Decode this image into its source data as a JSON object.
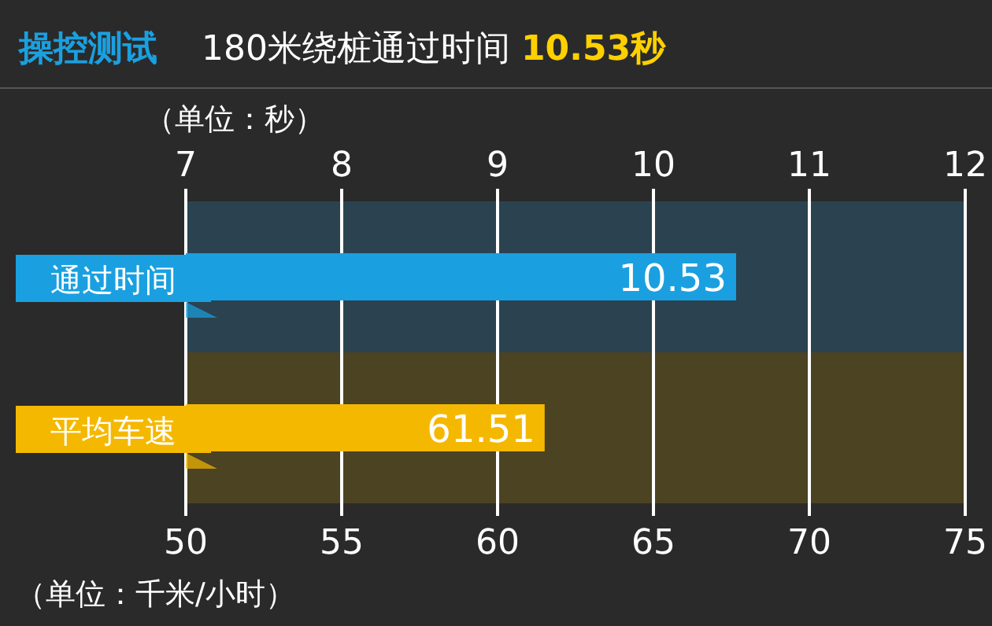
{
  "chart_data": {
    "type": "bar",
    "orientation": "horizontal",
    "title": "操控测试",
    "subtitle": "180米绕桩通过时间 **10.53秒**",
    "categories": [
      "通过时间",
      "平均车速"
    ],
    "series": [
      {
        "color": "#1aa0e0",
        "values": [
          10.53,
          null
        ],
        "axis": "x2"
      },
      {
        "color": "#f5b800",
        "values": [
          null,
          61.51
        ]
      }
    ],
    "xlim": [
      50,
      75
    ],
    "xticks": [
      50,
      55,
      60,
      65,
      70,
      75
    ],
    "xlabel": "（单位：千米/小时）",
    "x2lim": [
      7,
      12
    ],
    "x2ticks": [
      7,
      8,
      9,
      10,
      11,
      12
    ],
    "x2label": "（单位：秒）",
    "data_labels": true,
    "grid": "x"
  }
}
